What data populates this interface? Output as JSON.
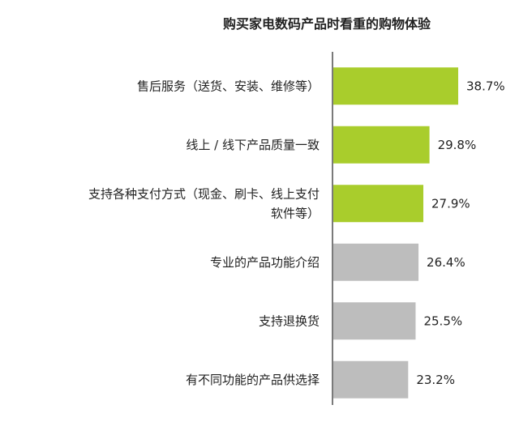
{
  "chart_data": {
    "type": "bar",
    "orientation": "horizontal",
    "title": "购买家电数码产品时看重的购物体验",
    "categories": [
      "售后服务（送货、安装、维修等）",
      "线上 / 线下产品质量一致",
      "支持各种支付方式（现金、刷卡、线上支付软件等）",
      "专业的产品功能介绍",
      "支持退换货",
      "有不同功能的产品供选择"
    ],
    "category_lines": [
      [
        "售后服务（送货、安装、维修等）"
      ],
      [
        "线上 / 线下产品质量一致"
      ],
      [
        "支持各种支付方式（现金、刷卡、线上支付",
        "软件等）"
      ],
      [
        "专业的产品功能介绍"
      ],
      [
        "支持退换货"
      ],
      [
        "有不同功能的产品供选择"
      ]
    ],
    "values": [
      38.7,
      29.8,
      27.9,
      26.4,
      25.5,
      23.2
    ],
    "value_labels": [
      "38.7%",
      "29.8%",
      "27.9%",
      "26.4%",
      "25.5%",
      "23.2%"
    ],
    "highlight_count": 3,
    "colors": {
      "highlight": "#a9cd2c",
      "normal": "#bdbdbd",
      "axis": "#222222"
    },
    "grid": false,
    "legend": "none"
  }
}
